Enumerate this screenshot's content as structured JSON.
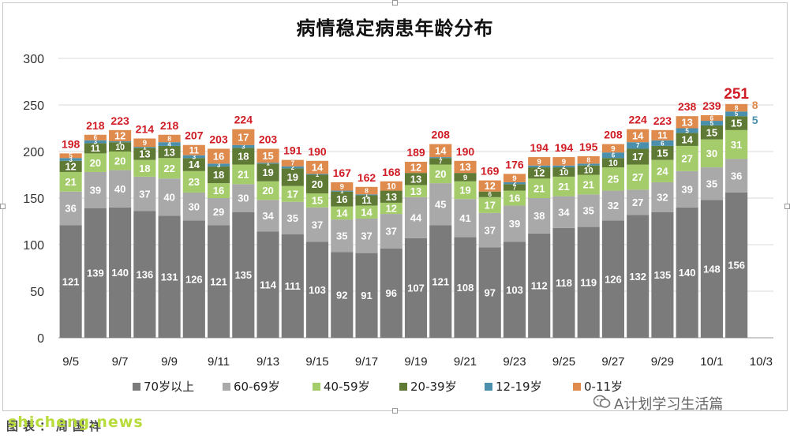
{
  "chart_data": {
    "type": "bar",
    "stacked": true,
    "title": "病情稳定病患年龄分布",
    "xlabel": "",
    "ylabel": "",
    "ylim": [
      0,
      300
    ],
    "yticks": [
      0,
      50,
      100,
      150,
      200,
      250,
      300
    ],
    "grid": true,
    "legend_position": "bottom",
    "categories": [
      "9/5",
      "9/6",
      "9/7",
      "9/8",
      "9/9",
      "9/10",
      "9/11",
      "9/12",
      "9/13",
      "9/14",
      "9/15",
      "9/16",
      "9/17",
      "9/18",
      "9/19",
      "9/20",
      "9/21",
      "9/22",
      "9/23",
      "9/24",
      "9/25",
      "9/26",
      "9/27",
      "9/28",
      "9/29",
      "9/30",
      "10/1",
      "10/2",
      "10/3"
    ],
    "x_tick_labels": [
      "9/5",
      "",
      "9/7",
      "",
      "9/9",
      "",
      "9/11",
      "",
      "9/13",
      "",
      "9/15",
      "",
      "9/17",
      "",
      "9/19",
      "",
      "9/21",
      "",
      "9/23",
      "",
      "9/25",
      "",
      "9/27",
      "",
      "9/29",
      "",
      "10/1",
      "",
      "10/3"
    ],
    "series": [
      {
        "name": "70岁以上",
        "color": "#7b7b7b",
        "label_color": "#ffffff",
        "values": [
          121,
          139,
          140,
          136,
          131,
          126,
          121,
          135,
          114,
          111,
          103,
          92,
          91,
          96,
          107,
          121,
          108,
          97,
          103,
          112,
          118,
          119,
          126,
          132,
          135,
          140,
          148,
          156,
          null
        ]
      },
      {
        "name": "60-69岁",
        "color": "#a9a9a9",
        "label_color": "#ffffff",
        "values": [
          36,
          39,
          40,
          37,
          40,
          30,
          29,
          30,
          34,
          35,
          37,
          35,
          37,
          37,
          44,
          45,
          41,
          37,
          39,
          38,
          34,
          35,
          32,
          27,
          32,
          39,
          35,
          36,
          null
        ]
      },
      {
        "name": "40-59岁",
        "color": "#a5cc6a",
        "label_color": "#ffffff",
        "values": [
          21,
          20,
          20,
          18,
          22,
          23,
          16,
          21,
          20,
          17,
          15,
          14,
          14,
          12,
          13,
          20,
          19,
          17,
          16,
          21,
          21,
          21,
          25,
          27,
          24,
          27,
          30,
          31,
          null
        ]
      },
      {
        "name": "20-39岁",
        "color": "#5f7a34",
        "label_color": "#ffffff",
        "values": [
          12,
          11,
          10,
          13,
          13,
          14,
          18,
          18,
          19,
          19,
          20,
          16,
          11,
          13,
          13,
          7,
          9,
          6,
          7,
          12,
          10,
          10,
          10,
          17,
          15,
          14,
          15,
          15,
          null
        ]
      },
      {
        "name": "12-19岁",
        "color": "#4a8fab",
        "label_color": "#ffffff",
        "values": [
          3,
          3,
          1,
          1,
          4,
          3,
          3,
          3,
          1,
          2,
          1,
          1,
          1,
          0,
          0,
          1,
          0,
          0,
          2,
          2,
          2,
          2,
          6,
          7,
          6,
          5,
          5,
          5,
          null
        ]
      },
      {
        "name": "0-11岁",
        "color": "#df8b4e",
        "label_color": "#ffffff",
        "values": [
          5,
          6,
          12,
          9,
          8,
          11,
          16,
          17,
          15,
          7,
          14,
          9,
          8,
          10,
          12,
          14,
          13,
          12,
          9,
          9,
          9,
          8,
          9,
          14,
          11,
          13,
          6,
          8,
          null
        ]
      }
    ],
    "totals": [
      198,
      218,
      223,
      214,
      218,
      207,
      203,
      224,
      203,
      191,
      190,
      167,
      162,
      168,
      189,
      208,
      190,
      169,
      176,
      194,
      194,
      195,
      208,
      224,
      223,
      238,
      239,
      251,
      null
    ],
    "total_label_color": "#d01c24",
    "side_labels": [
      {
        "value": "8",
        "color": "#df8b4e"
      },
      {
        "value": "5",
        "color": "#4a8fab"
      }
    ]
  },
  "watermark": {
    "site": "shicheng.news",
    "caption": "图表：周国祥",
    "brand": "A计划学习生活篇"
  }
}
